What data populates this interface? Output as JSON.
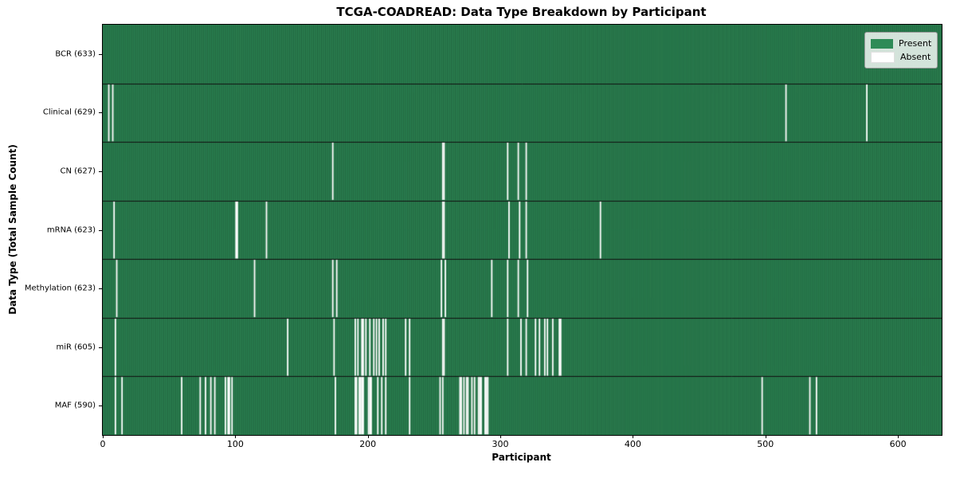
{
  "chart_data": {
    "type": "heatmap",
    "title": "TCGA-COADREAD: Data Type Breakdown by Participant",
    "xlabel": "Participant",
    "ylabel": "Data Type (Total Sample Count)",
    "n_participants": 633,
    "x_ticks": [
      0,
      100,
      200,
      300,
      400,
      500,
      600
    ],
    "x_range": [
      0,
      633
    ],
    "present_color": "#2e8b57",
    "absent_color": "#ffffff",
    "column_edge_color": "rgba(0,0,0,0.38)",
    "row_separator_color": "#111111",
    "legend_position": "upper right",
    "legend": [
      {
        "label": "Present",
        "color": "#2e8b57"
      },
      {
        "label": "Absent",
        "color": "#ffffff"
      }
    ],
    "rows": [
      {
        "label": "BCR (633)",
        "data_type": "BCR",
        "total": 633,
        "absent": []
      },
      {
        "label": "Clinical (629)",
        "data_type": "Clinical",
        "total": 629,
        "absent": [
          4,
          7,
          515,
          576
        ]
      },
      {
        "label": "CN (627)",
        "data_type": "CN",
        "total": 627,
        "absent": [
          173,
          256,
          257,
          305,
          313,
          319
        ]
      },
      {
        "label": "mRNA (623)",
        "data_type": "mRNA",
        "total": 623,
        "absent": [
          8,
          100,
          101,
          123,
          256,
          257,
          306,
          314,
          319,
          375
        ]
      },
      {
        "label": "Methylation (623)",
        "data_type": "Methylation",
        "total": 623,
        "absent": [
          10,
          114,
          173,
          176,
          255,
          258,
          293,
          305,
          313,
          320
        ]
      },
      {
        "label": "miR (605)",
        "data_type": "miR",
        "total": 605,
        "absent": [
          9,
          139,
          174,
          190,
          192,
          195,
          196,
          198,
          201,
          204,
          206,
          208,
          211,
          213,
          228,
          231,
          256,
          257,
          305,
          315,
          319,
          326,
          329,
          333,
          335,
          339,
          344,
          345
        ]
      },
      {
        "label": "MAF (590)",
        "data_type": "MAF",
        "total": 590,
        "absent": [
          9,
          14,
          59,
          73,
          77,
          81,
          84,
          92,
          94,
          95,
          97,
          175,
          190,
          191,
          193,
          194,
          195,
          196,
          200,
          201,
          202,
          207,
          210,
          213,
          231,
          254,
          256,
          269,
          270,
          272,
          274,
          275,
          278,
          280,
          283,
          284,
          285,
          288,
          289,
          290,
          497,
          533,
          538
        ]
      }
    ]
  }
}
